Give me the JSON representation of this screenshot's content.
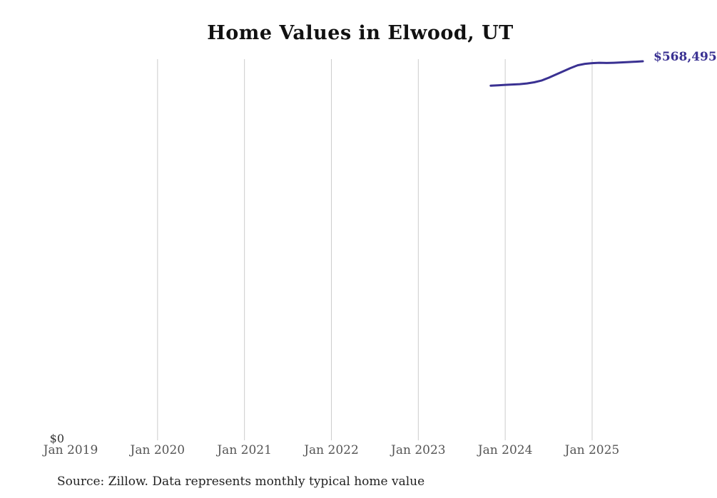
{
  "title": "Home Values in Elwood, UT",
  "source_note": "Source: Zillow. Data represents monthly typical home value",
  "end_label": "$568,495",
  "y_axis": {
    "zero_label": "$0"
  },
  "x_axis": {
    "ticks": [
      {
        "label": "Jan 2019",
        "year": 2019,
        "gridline": false
      },
      {
        "label": "Jan 2020",
        "year": 2020,
        "gridline": true
      },
      {
        "label": "Jan 2021",
        "year": 2021,
        "gridline": true
      },
      {
        "label": "Jan 2022",
        "year": 2022,
        "gridline": true
      },
      {
        "label": "Jan 2023",
        "year": 2023,
        "gridline": true
      },
      {
        "label": "Jan 2024",
        "year": 2024,
        "gridline": true
      },
      {
        "label": "Jan 2025",
        "year": 2025,
        "gridline": true
      }
    ]
  },
  "colors": {
    "line": "#3a3192",
    "end_label": "#3a3192",
    "grid": "#cccccc",
    "tick_text": "#555555",
    "title_text": "#111111",
    "source_text": "#222222"
  },
  "chart_data": {
    "type": "line",
    "title": "Home Values in Elwood, UT",
    "series_name": "Monthly typical home value",
    "xlabel": "",
    "ylabel": "",
    "ylim": [
      0,
      572000
    ],
    "x_range": [
      "2019-01",
      "2025-10"
    ],
    "grid": "vertical-yearly-only",
    "legend": "none",
    "x": [
      "2023-11",
      "2023-12",
      "2024-01",
      "2024-02",
      "2024-03",
      "2024-04",
      "2024-05",
      "2024-06",
      "2024-07",
      "2024-08",
      "2024-09",
      "2024-10",
      "2024-11",
      "2024-12",
      "2025-01",
      "2025-02",
      "2025-03",
      "2025-04",
      "2025-05",
      "2025-06",
      "2025-07",
      "2025-08"
    ],
    "values": [
      531900,
      532400,
      533100,
      533600,
      534100,
      535200,
      536900,
      539500,
      543800,
      548600,
      553400,
      558200,
      562500,
      564600,
      565700,
      566200,
      565900,
      566200,
      566800,
      567300,
      567900,
      568495
    ],
    "end_value_label": "$568,495"
  }
}
